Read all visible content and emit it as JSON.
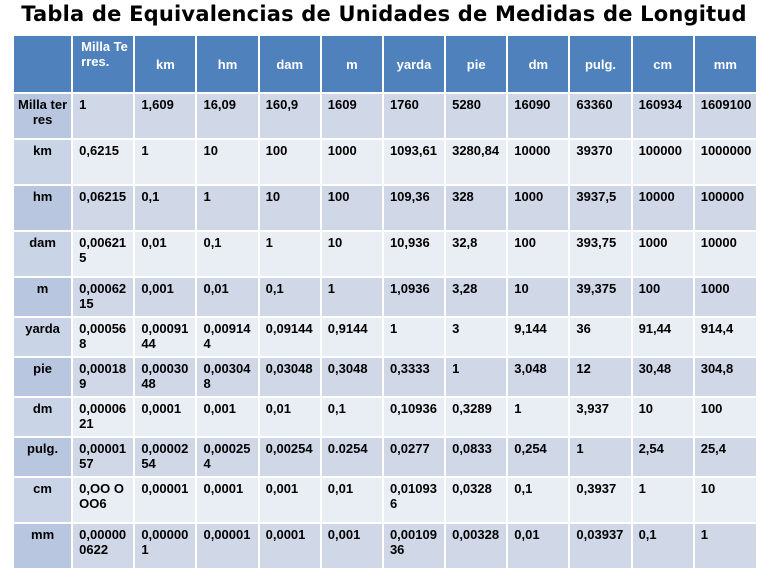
{
  "title": "Tabla de Equivalencias de Unidades de Medidas de Longitud",
  "colors": {
    "header_bg": "#4f81bd",
    "row_header_bg": "#b8c7df",
    "row_odd_bg": "#d0d8e8",
    "row_even_bg": "#e9edf4"
  },
  "table": {
    "corner": "",
    "columns": [
      "Milla Terres.",
      "km",
      "hm",
      "dam",
      "m",
      "yarda",
      "pie",
      "dm",
      "pulg.",
      "cm",
      "mm"
    ],
    "rows": [
      {
        "label": "Milla terres",
        "cells": [
          "1",
          "1,609",
          "16,09",
          "160,9",
          "1609",
          "1760",
          "5280",
          "16090",
          "63360",
          "160934",
          "1609100"
        ]
      },
      {
        "label": "km",
        "cells": [
          "0,6215",
          "1",
          "10",
          "100",
          "1000",
          "1093,61",
          "3280,84",
          "10000",
          "39370",
          "100000",
          "1000000"
        ]
      },
      {
        "label": "hm",
        "cells": [
          "0,06215",
          "0,1",
          "1",
          "10",
          "100",
          "109,36",
          "328",
          "1000",
          "3937,5",
          "10000",
          "100000"
        ]
      },
      {
        "label": "dam",
        "cells": [
          "0,006215",
          "0,01",
          "0,1",
          "1",
          "10",
          "10,936",
          "32,8",
          "100",
          "393,75",
          "1000",
          "10000"
        ]
      },
      {
        "label": "m",
        "cells": [
          "0,0006215",
          "0,001",
          "0,01",
          "0,1",
          "1",
          "1,0936",
          "3,28",
          "10",
          "39,375",
          "100",
          "1000"
        ]
      },
      {
        "label": "yarda",
        "cells": [
          "0,000568",
          "0,0009144",
          "0,009144",
          "0,09144",
          "0,9144",
          "1",
          "3",
          "9,144",
          "36",
          "91,44",
          "914,4"
        ]
      },
      {
        "label": "pie",
        "cells": [
          "0,000189",
          "0,0003048",
          "0,003048",
          "0,03048",
          "0,3048",
          "0,3333",
          "1",
          "3,048",
          "12",
          "30,48",
          "304,8"
        ]
      },
      {
        "label": "dm",
        "cells": [
          "0,0000621",
          "0,0001",
          "0,001",
          "0,01",
          "0,1",
          "0,10936",
          "0,3289",
          "1",
          "3,937",
          "10",
          "100"
        ]
      },
      {
        "label": "pulg.",
        "cells": [
          "0,0000157",
          "0,0000254",
          "0,000254",
          "0,00254",
          "0.0254",
          "0,0277",
          "0,0833",
          "0,254",
          "1",
          "2,54",
          "25,4"
        ]
      },
      {
        "label": "cm",
        "cells": [
          "0,OO OOO6",
          "0,00001",
          "0,0001",
          "0,001",
          "0,01",
          "0,010936",
          "0,0328",
          "0,1",
          "0,3937",
          "1",
          "10"
        ]
      },
      {
        "label": "mm",
        "cells": [
          "0,000000622",
          "0,000001",
          "0,00001",
          "0,0001",
          "0,001",
          "0,0010936",
          "0,00328",
          "0,01",
          "0,03937",
          "0,1",
          "1"
        ]
      }
    ]
  }
}
